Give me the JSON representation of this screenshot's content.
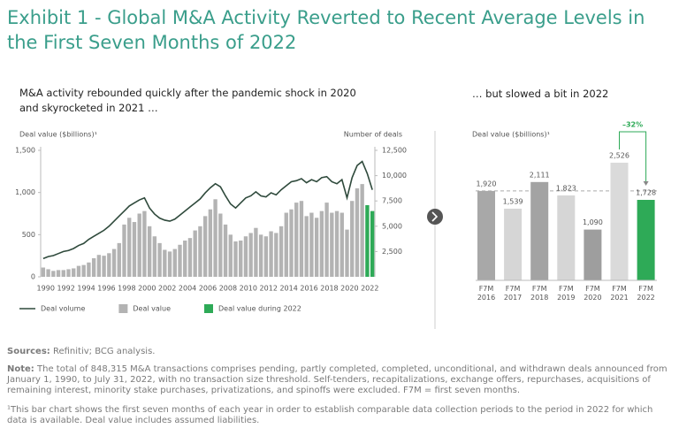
{
  "title": "Exhibit 1 - Global M&A Activity Reverted to Recent Average Levels in the First Seven Months of 2022",
  "chart_data": [
    {
      "type": "combo",
      "subtitle": "M&A activity rebounded quickly after the pandemic shock in 2020 and skyrocketed in 2021 …",
      "ylabel": "Deal value ($billions)¹",
      "y2label": "Number of deals",
      "categories": [
        "1990",
        null,
        null,
        null,
        "1992",
        null,
        null,
        null,
        "1994",
        null,
        null,
        null,
        "1996",
        null,
        null,
        null,
        "1998",
        null,
        null,
        null,
        "2000",
        null,
        null,
        null,
        "2002",
        null,
        null,
        null,
        "2004",
        null,
        null,
        null,
        "2006",
        null,
        null,
        null,
        "2008",
        null,
        null,
        null,
        "2010",
        null,
        null,
        null,
        "2012",
        null,
        null,
        null,
        "2014",
        null,
        null,
        null,
        "2016",
        null,
        null,
        null,
        "2018",
        null,
        null,
        null,
        "2020",
        null,
        null,
        null,
        "2022",
        null
      ],
      "series": [
        {
          "name": "Deal volume",
          "type": "line",
          "axis": "y2",
          "color": "#2f4a3c",
          "values": [
            1800,
            2000,
            2100,
            2300,
            2500,
            2600,
            2800,
            3100,
            3300,
            3700,
            4000,
            4300,
            4600,
            5000,
            5500,
            6000,
            6500,
            7000,
            7300,
            7600,
            7800,
            6800,
            6200,
            5800,
            5600,
            5500,
            5700,
            6100,
            6500,
            6900,
            7300,
            7700,
            8300,
            8800,
            9200,
            8900,
            8000,
            7200,
            6800,
            7300,
            7800,
            8000,
            8400,
            8000,
            7900,
            8300,
            8100,
            8600,
            9000,
            9400,
            9500,
            9700,
            9300,
            9600,
            9400,
            9800,
            9900,
            9400,
            9200,
            9600,
            7800,
            9800,
            11000,
            11400,
            10200,
            8600
          ]
        },
        {
          "name": "Deal value",
          "type": "bar",
          "color": "#b3b3b3",
          "values": [
            110,
            90,
            70,
            80,
            80,
            90,
            100,
            130,
            140,
            170,
            220,
            260,
            250,
            280,
            330,
            400,
            620,
            700,
            650,
            750,
            780,
            600,
            480,
            400,
            320,
            300,
            330,
            380,
            430,
            460,
            550,
            600,
            720,
            800,
            920,
            750,
            620,
            500,
            420,
            430,
            480,
            520,
            580,
            500,
            480,
            540,
            520,
            600,
            760,
            800,
            880,
            900,
            720,
            760,
            700,
            780,
            880,
            760,
            780,
            760,
            560,
            900,
            1050,
            1100,
            null,
            null
          ]
        },
        {
          "name": "Deal value during 2022",
          "type": "bar",
          "color": "#2eaa57",
          "values": [
            null,
            null,
            null,
            null,
            null,
            null,
            null,
            null,
            null,
            null,
            null,
            null,
            null,
            null,
            null,
            null,
            null,
            null,
            null,
            null,
            null,
            null,
            null,
            null,
            null,
            null,
            null,
            null,
            null,
            null,
            null,
            null,
            null,
            null,
            null,
            null,
            null,
            null,
            null,
            null,
            null,
            null,
            null,
            null,
            null,
            null,
            null,
            null,
            null,
            null,
            null,
            null,
            null,
            null,
            null,
            null,
            null,
            null,
            null,
            null,
            null,
            null,
            null,
            null,
            850,
            780
          ]
        }
      ],
      "ylim": [
        0,
        1500
      ],
      "yticks": [
        0,
        500,
        {
          "value": 1000,
          "label": "1,000"
        },
        {
          "value": 1500,
          "label": "1,500"
        }
      ],
      "y2lim": [
        0,
        12500
      ],
      "y2ticks": [
        {
          "value": 2500,
          "label": "2,500"
        },
        {
          "value": 5000,
          "label": "5,000"
        },
        {
          "value": 7500,
          "label": "7,500"
        },
        {
          "value": 10000,
          "label": "10,000"
        },
        {
          "value": 12500,
          "label": "12,500"
        }
      ],
      "grid": false
    },
    {
      "type": "bar",
      "subtitle": "… but slowed a bit in 2022",
      "ylabel": "Deal value ($billions)¹",
      "categories": [
        "F7M 2016",
        "F7M 2017",
        "F7M 2018",
        "F7M 2019",
        "F7M 2020",
        "F7M 2021",
        "F7M 2022"
      ],
      "values": [
        1920,
        1539,
        2111,
        1823,
        1090,
        2526,
        1728
      ],
      "value_labels": [
        "1,920",
        "1,539",
        "2,111",
        "1,823",
        "1,090",
        "2,526",
        "1,728"
      ],
      "colors": [
        "#a8a8a8",
        "#d6d6d6",
        "#a3a3a3",
        "#d6d6d6",
        "#9e9e9e",
        "#dadada",
        "#2eaa57"
      ],
      "ylim": [
        0,
        3000
      ],
      "annotation": "–32%"
    }
  ],
  "sources": {
    "label": "Sources:",
    "text": "Refinitiv; BCG analysis."
  },
  "note": {
    "label": "Note:",
    "text": "The total of 848,315 M&A transactions comprises pending, partly completed, completed, unconditional, and withdrawn deals announced from January 1, 1990, to July 31, 2022, with no transaction size threshold. Self-tenders, recapitalizations, exchange offers, repurchases, acquisitions of remaining interest, minority stake purchases, privatizations, and spinoffs were excluded. F7M = first seven months."
  },
  "footnote": "¹This bar chart shows the first seven months of each year in order to establish comparable data collection periods to the period in 2022 for which data is available. Deal value includes assumed liabilities."
}
